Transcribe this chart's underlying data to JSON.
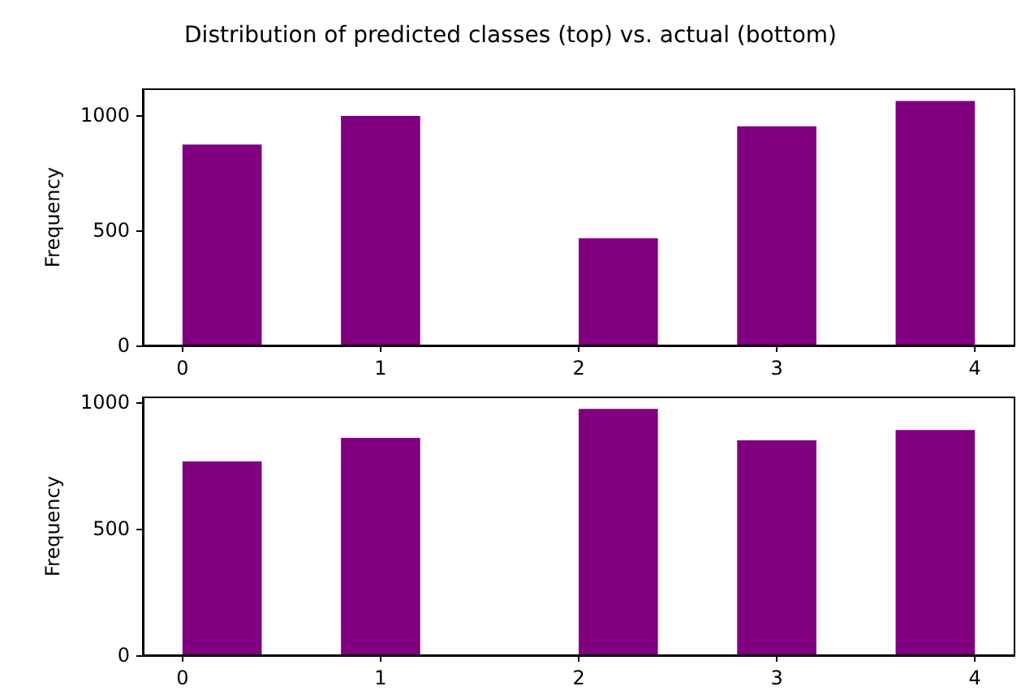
{
  "chart_data": [
    {
      "type": "histogram",
      "title": "Distribution of predicted classes (top) vs. actual (bottom)",
      "ylabel": "Frequency",
      "color": "#800080",
      "bins": [
        0,
        0.4,
        0.8,
        1.2,
        1.6,
        2.0,
        2.4,
        2.8,
        3.2,
        3.6,
        4.0
      ],
      "values": [
        873,
        0,
        997,
        0,
        0,
        466,
        0,
        952,
        0,
        1062
      ],
      "xlim": [
        -0.2,
        4.2
      ],
      "xticks": [
        0,
        1,
        2,
        3,
        4
      ],
      "ylim": [
        0,
        1113
      ],
      "yticks": [
        0,
        500,
        1000
      ],
      "grid": false
    },
    {
      "type": "histogram",
      "ylabel": "Frequency",
      "color": "#800080",
      "bins": [
        0,
        0.4,
        0.8,
        1.2,
        1.6,
        2.0,
        2.4,
        2.8,
        3.2,
        3.6,
        4.0
      ],
      "values": [
        765,
        0,
        858,
        0,
        0,
        972,
        0,
        848,
        0,
        889
      ],
      "xlim": [
        -0.2,
        4.2
      ],
      "xticks": [
        0,
        1,
        2,
        3,
        4
      ],
      "ylim": [
        0,
        1018
      ],
      "yticks": [
        0,
        500,
        1000
      ],
      "grid": false
    }
  ]
}
